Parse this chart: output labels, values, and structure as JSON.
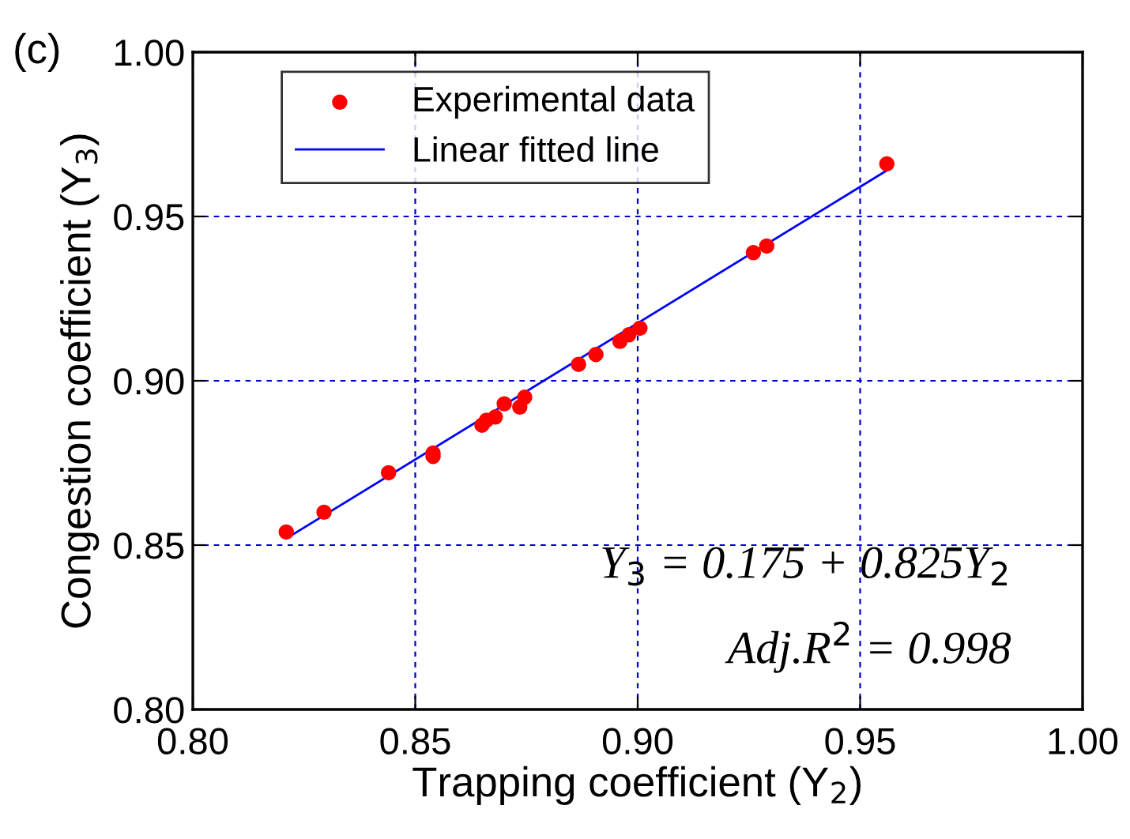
{
  "chart_data": {
    "type": "scatter",
    "xlabel": "Trapping coefficient (Y$_{2}$)",
    "ylabel": "Congestion coefficient (Y$_{3}$)",
    "xlim": [
      0.8,
      1.0
    ],
    "ylim": [
      0.8,
      1.0
    ],
    "xticks": [
      {
        "value": 0.8,
        "label": "0.80"
      },
      {
        "value": 0.85,
        "label": "0.85"
      },
      {
        "value": 0.9,
        "label": "0.90"
      },
      {
        "value": 0.95,
        "label": "0.95"
      },
      {
        "value": 1.0,
        "label": "1.00"
      }
    ],
    "yticks": [
      {
        "value": 0.8,
        "label": "0.80"
      },
      {
        "value": 0.85,
        "label": "0.85"
      },
      {
        "value": 0.9,
        "label": "0.90"
      },
      {
        "value": 0.95,
        "label": "0.95"
      },
      {
        "value": 1.0,
        "label": "1.00"
      }
    ],
    "grid": true,
    "legend": "top left",
    "annotations": [
      "(c)",
      "Y$_{3}$ = 0.175 + 0.825Y$_{2}$",
      "Adj.R$^{2}$ = 0.998"
    ],
    "series": [
      {
        "name": "Experimental data",
        "marker": "circle",
        "color": "#ff0000",
        "x": [
          0.821,
          0.8295,
          0.844,
          0.854,
          0.854,
          0.865,
          0.866,
          0.868,
          0.87,
          0.8735,
          0.8746,
          0.8867,
          0.8906,
          0.896,
          0.898,
          0.9005,
          0.926,
          0.929,
          0.956
        ],
        "values": [
          0.854,
          0.86,
          0.872,
          0.878,
          0.877,
          0.8865,
          0.888,
          0.889,
          0.893,
          0.892,
          0.895,
          0.905,
          0.908,
          0.912,
          0.914,
          0.916,
          0.939,
          0.941,
          0.966
        ]
      },
      {
        "name": "Linear fitted line",
        "type": "line",
        "color": "#0000ff",
        "x": [
          0.821,
          0.956
        ],
        "values": [
          0.852,
          0.964
        ]
      }
    ]
  }
}
